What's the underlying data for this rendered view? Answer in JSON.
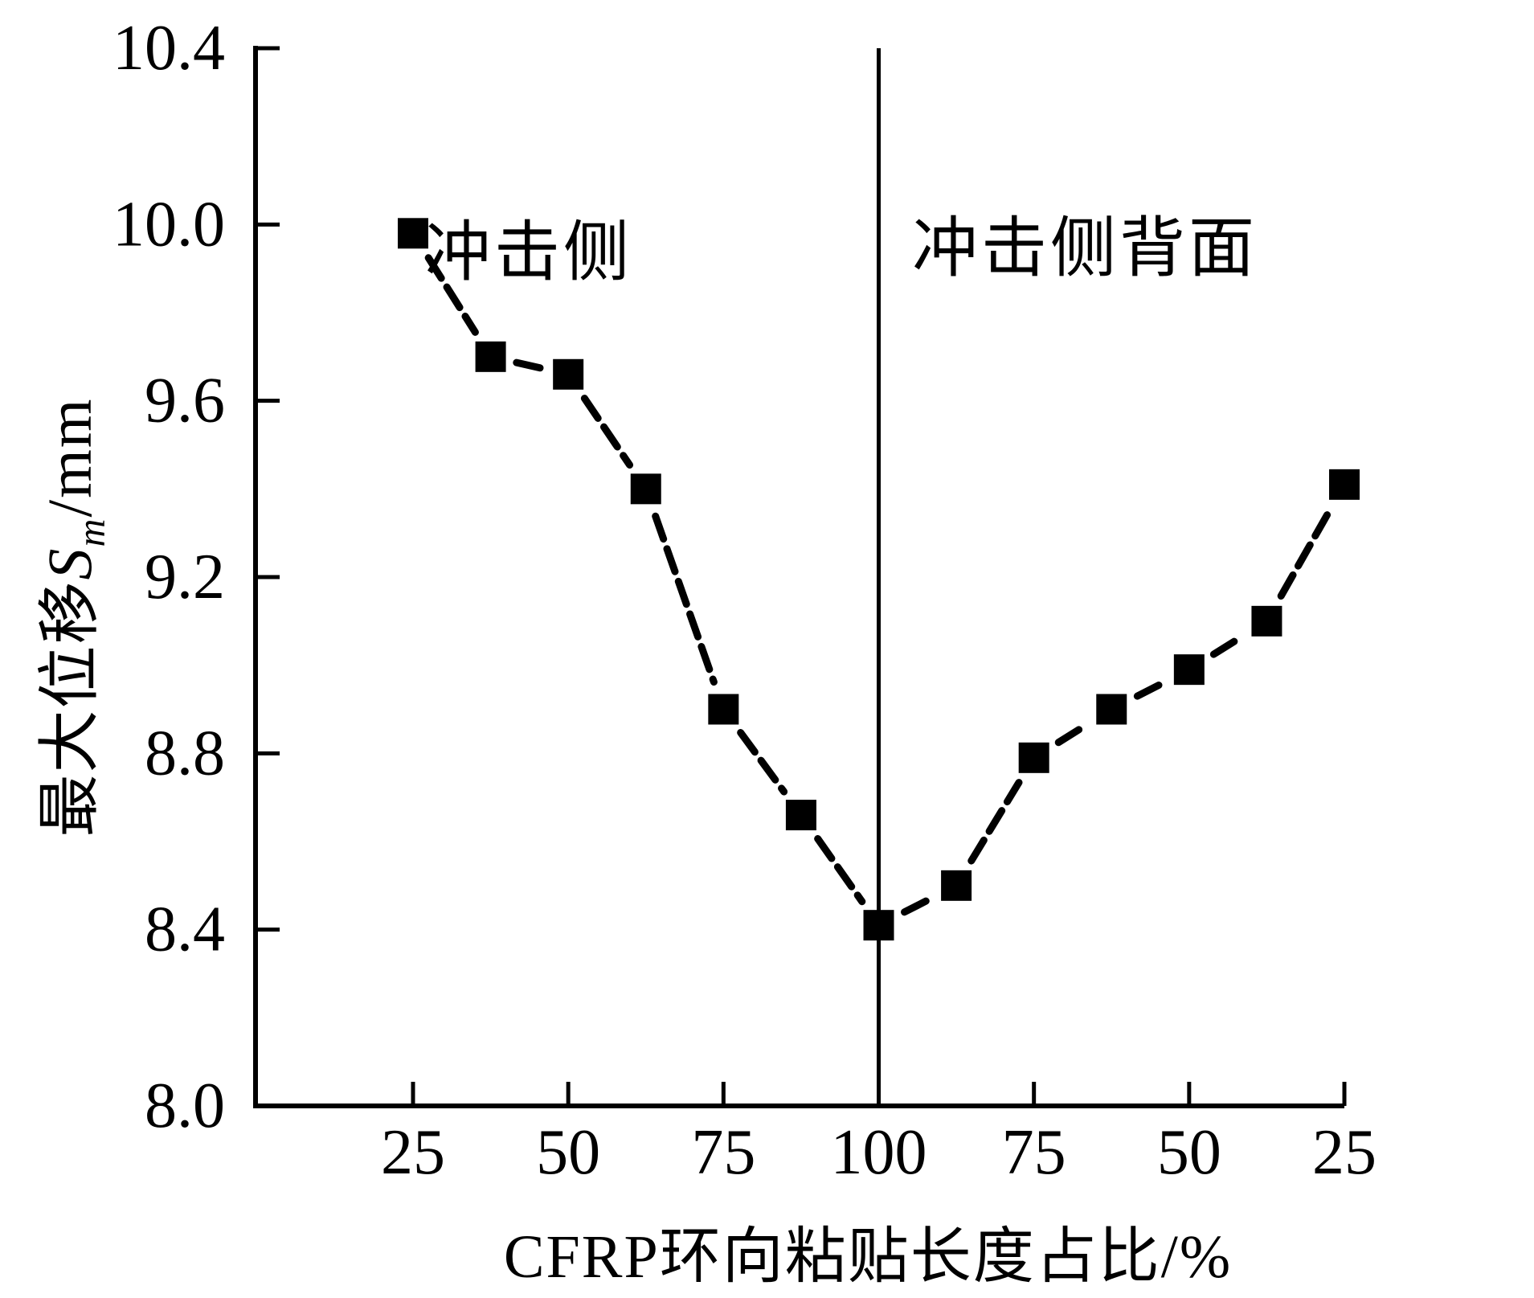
{
  "figure": {
    "background_color": "#ffffff",
    "foreground_color": "#000000"
  },
  "chart_data": {
    "type": "line",
    "title": "",
    "xlabel": "CFRP环向粘贴长度占比/%",
    "ylabel": "最大位移Sm/mm",
    "ylabel_parts": {
      "prefix": "最大位移",
      "var": "S",
      "sub": "m",
      "suffix": "/mm"
    },
    "x_tick_labels": [
      "25",
      "50",
      "75",
      "100",
      "75",
      "50",
      "25"
    ],
    "y_tick_labels": [
      "10.4",
      "10.0",
      "9.6",
      "9.2",
      "8.8",
      "8.4",
      "8.0"
    ],
    "ylim": [
      8.0,
      10.4
    ],
    "y_tick_step": 0.4,
    "grid": "off",
    "legend": "none",
    "axis_note": "x axis is folded at 100%: left half is impact side (25→100), right half is back of impact side (100→25 mirrored); vertical divider line at 100",
    "series": [
      {
        "name": "最大位移",
        "marker": "filled-square",
        "line_style": "thick dashed black",
        "color": "#000000",
        "x_folded_values": [
          25,
          37.5,
          50,
          62.5,
          75,
          87.5,
          100,
          87.5,
          75,
          62.5,
          50,
          37.5,
          25
        ],
        "sides": [
          "冲击侧",
          "冲击侧",
          "冲击侧",
          "冲击侧",
          "冲击侧",
          "冲击侧",
          "冲击侧",
          "冲击侧背面",
          "冲击侧背面",
          "冲击侧背面",
          "冲击侧背面",
          "冲击侧背面",
          "冲击侧背面"
        ],
        "values": [
          9.98,
          9.7,
          9.66,
          9.4,
          8.9,
          8.66,
          8.41,
          8.5,
          8.79,
          8.9,
          8.99,
          9.1,
          9.41
        ]
      }
    ],
    "annotations": [
      {
        "text": "冲击侧",
        "region": "left-of-divider"
      },
      {
        "text": "冲击侧背面",
        "region": "right-of-divider"
      }
    ]
  }
}
